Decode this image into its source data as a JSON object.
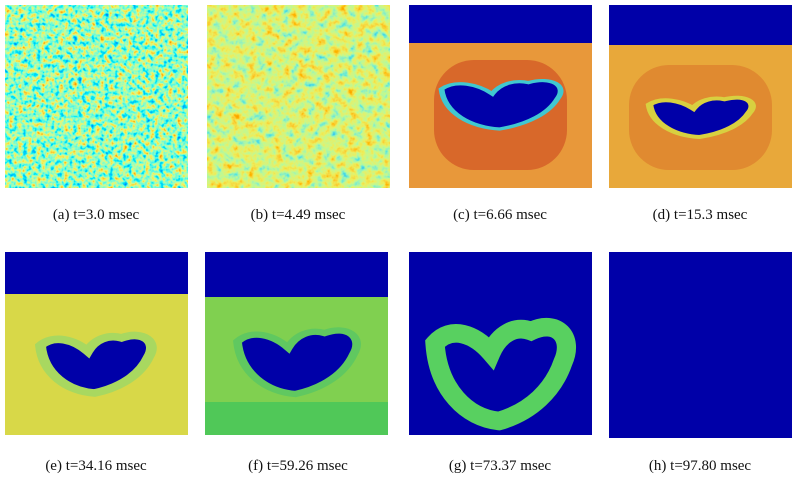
{
  "panels": [
    {
      "caption": "(a) t=3.0 msec"
    },
    {
      "caption": "(b) t=4.49 msec"
    },
    {
      "caption": "(c) t=6.66 msec"
    },
    {
      "caption": "(d) t=15.3 msec"
    },
    {
      "caption": "(e) t=34.16 msec"
    },
    {
      "caption": "(f) t=59.26 msec"
    },
    {
      "caption": "(g) t=73.37 msec"
    },
    {
      "caption": "(h) t=97.80 msec"
    }
  ]
}
